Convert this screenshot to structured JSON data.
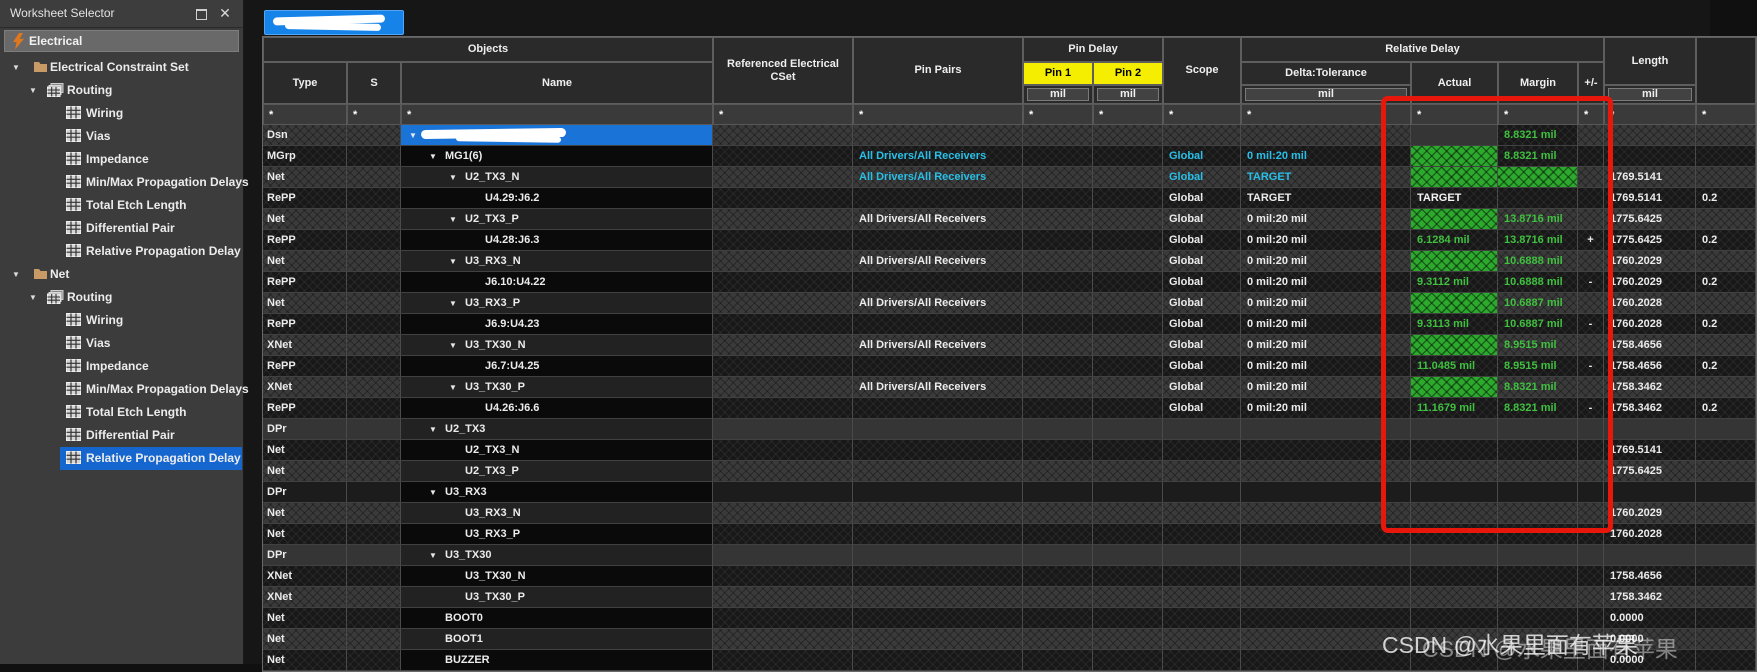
{
  "sidebar": {
    "title": "Worksheet Selector",
    "section": "Electrical",
    "tree": [
      {
        "label": "Electrical Constraint Set",
        "level": 0,
        "icon": "folder",
        "expanded": true
      },
      {
        "label": "Routing",
        "level": 1,
        "icon": "stack",
        "expanded": true
      },
      {
        "label": "Wiring",
        "level": 2,
        "icon": "sheet"
      },
      {
        "label": "Vias",
        "level": 2,
        "icon": "sheet"
      },
      {
        "label": "Impedance",
        "level": 2,
        "icon": "sheet"
      },
      {
        "label": "Min/Max Propagation Delays",
        "level": 2,
        "icon": "sheet"
      },
      {
        "label": "Total Etch Length",
        "level": 2,
        "icon": "sheet"
      },
      {
        "label": "Differential Pair",
        "level": 2,
        "icon": "sheet"
      },
      {
        "label": "Relative Propagation Delay",
        "level": 2,
        "icon": "sheet"
      },
      {
        "label": "Net",
        "level": 0,
        "icon": "folder",
        "expanded": true
      },
      {
        "label": "Routing",
        "level": 1,
        "icon": "stack",
        "expanded": true
      },
      {
        "label": "Wiring",
        "level": 2,
        "icon": "sheet"
      },
      {
        "label": "Vias",
        "level": 2,
        "icon": "sheet"
      },
      {
        "label": "Impedance",
        "level": 2,
        "icon": "sheet"
      },
      {
        "label": "Min/Max Propagation Delays",
        "level": 2,
        "icon": "sheet"
      },
      {
        "label": "Total Etch Length",
        "level": 2,
        "icon": "sheet"
      },
      {
        "label": "Differential Pair",
        "level": 2,
        "icon": "sheet"
      },
      {
        "label": "Relative Propagation Delay",
        "level": 2,
        "icon": "sheet",
        "selected": true
      }
    ]
  },
  "table": {
    "groups": {
      "objects": "Objects",
      "pin_delay": "Pin Delay",
      "relative_delay": "Relative Delay"
    },
    "headers": {
      "type": "Type",
      "s": "S",
      "name": "Name",
      "refcset": "Referenced Electrical CSet",
      "pin_pairs": "Pin Pairs",
      "pin1": "Pin 1",
      "pin2": "Pin 2",
      "scope": "Scope",
      "delta": "Delta:Tolerance",
      "actual": "Actual",
      "margin": "Margin",
      "pm": "+/-",
      "length": "Length",
      "unit": "mil",
      "filter": "*"
    },
    "rows": [
      {
        "type": "Dsn",
        "name": "",
        "indent": 0,
        "arrow": true,
        "selected": true,
        "redacted": true,
        "actual_smooth": true,
        "margin": "8.8321 mil",
        "margin_color": "green",
        "margin_dark": true
      },
      {
        "type": "MGrp",
        "name": "MG1(6)",
        "indent": 1,
        "arrow": true,
        "pin_pairs": "All Drivers/All Receivers",
        "pin_pairs_color": "cyan",
        "scope": "Global",
        "scope_color": "cyan",
        "delta": "0 mil:20 mil",
        "delta_color": "cyan",
        "actual_fill": true,
        "margin": "8.8321 mil",
        "margin_color": "green"
      },
      {
        "type": "Net",
        "name": "U2_TX3_N",
        "indent": 2,
        "arrow": true,
        "pin_pairs": "All Drivers/All Receivers",
        "pin_pairs_color": "cyan",
        "scope": "Global",
        "scope_color": "cyan",
        "delta": "TARGET",
        "delta_color": "cyan",
        "actual_fill": true,
        "margin_fill": true,
        "length": "1769.5141"
      },
      {
        "type": "RePP",
        "name": "U4.29:J6.2",
        "indent": 3,
        "scope": "Global",
        "delta": "TARGET",
        "actual": "TARGET",
        "actual_color": "white",
        "length": "1769.5141",
        "extra": "0.2"
      },
      {
        "type": "Net",
        "name": "U2_TX3_P",
        "indent": 2,
        "arrow": true,
        "pin_pairs": "All Drivers/All Receivers",
        "scope": "Global",
        "delta": "0 mil:20 mil",
        "actual_fill": true,
        "margin": "13.8716 mil",
        "margin_color": "green",
        "length": "1775.6425"
      },
      {
        "type": "RePP",
        "name": "U4.28:J6.3",
        "indent": 3,
        "scope": "Global",
        "delta": "0 mil:20 mil",
        "actual": "6.1284 mil",
        "actual_color": "green",
        "margin": "13.8716 mil",
        "margin_color": "green",
        "pm": "+",
        "length": "1775.6425",
        "extra": "0.2"
      },
      {
        "type": "Net",
        "name": "U3_RX3_N",
        "indent": 2,
        "arrow": true,
        "pin_pairs": "All Drivers/All Receivers",
        "scope": "Global",
        "delta": "0 mil:20 mil",
        "actual_fill": true,
        "margin": "10.6888 mil",
        "margin_color": "green",
        "length": "1760.2029"
      },
      {
        "type": "RePP",
        "name": "J6.10:U4.22",
        "indent": 3,
        "scope": "Global",
        "delta": "0 mil:20 mil",
        "actual": "9.3112 mil",
        "actual_color": "green",
        "margin": "10.6888 mil",
        "margin_color": "green",
        "pm": "-",
        "length": "1760.2029",
        "extra": "0.2"
      },
      {
        "type": "Net",
        "name": "U3_RX3_P",
        "indent": 2,
        "arrow": true,
        "pin_pairs": "All Drivers/All Receivers",
        "scope": "Global",
        "delta": "0 mil:20 mil",
        "actual_fill": true,
        "margin": "10.6887 mil",
        "margin_color": "green",
        "length": "1760.2028"
      },
      {
        "type": "RePP",
        "name": "J6.9:U4.23",
        "indent": 3,
        "scope": "Global",
        "delta": "0 mil:20 mil",
        "actual": "9.3113 mil",
        "actual_color": "green",
        "margin": "10.6887 mil",
        "margin_color": "green",
        "pm": "-",
        "length": "1760.2028",
        "extra": "0.2"
      },
      {
        "type": "XNet",
        "name": "U3_TX30_N",
        "indent": 2,
        "arrow": true,
        "pin_pairs": "All Drivers/All Receivers",
        "scope": "Global",
        "delta": "0 mil:20 mil",
        "actual_fill": true,
        "margin": "8.9515 mil",
        "margin_color": "green",
        "length": "1758.4656"
      },
      {
        "type": "RePP",
        "name": "J6.7:U4.25",
        "indent": 3,
        "scope": "Global",
        "delta": "0 mil:20 mil",
        "actual": "11.0485 mil",
        "actual_color": "green",
        "margin": "8.9515 mil",
        "margin_color": "green",
        "pm": "-",
        "length": "1758.4656",
        "extra": "0.2"
      },
      {
        "type": "XNet",
        "name": "U3_TX30_P",
        "indent": 2,
        "arrow": true,
        "pin_pairs": "All Drivers/All Receivers",
        "scope": "Global",
        "delta": "0 mil:20 mil",
        "actual_fill": true,
        "margin": "8.8321 mil",
        "margin_color": "green",
        "length": "1758.3462"
      },
      {
        "type": "RePP",
        "name": "U4.26:J6.6",
        "indent": 3,
        "scope": "Global",
        "delta": "0 mil:20 mil",
        "actual": "11.1679 mil",
        "actual_color": "green",
        "margin": "8.8321 mil",
        "margin_color": "green",
        "pm": "-",
        "length": "1758.3462",
        "extra": "0.2"
      },
      {
        "type": "DPr",
        "name": "U2_TX3",
        "indent": 1,
        "arrow": true,
        "smooth": true
      },
      {
        "type": "Net",
        "name": "U2_TX3_N",
        "indent": 2,
        "length": "1769.5141"
      },
      {
        "type": "Net",
        "name": "U2_TX3_P",
        "indent": 2,
        "length": "1775.6425"
      },
      {
        "type": "DPr",
        "name": "U3_RX3",
        "indent": 1,
        "arrow": true,
        "smooth": true
      },
      {
        "type": "Net",
        "name": "U3_RX3_N",
        "indent": 2,
        "length": "1760.2029"
      },
      {
        "type": "Net",
        "name": "U3_RX3_P",
        "indent": 2,
        "length": "1760.2028"
      },
      {
        "type": "DPr",
        "name": "U3_TX30",
        "indent": 1,
        "arrow": true,
        "smooth": true
      },
      {
        "type": "XNet",
        "name": "U3_TX30_N",
        "indent": 2,
        "length": "1758.4656"
      },
      {
        "type": "XNet",
        "name": "U3_TX30_P",
        "indent": 2,
        "length": "1758.3462"
      },
      {
        "type": "Net",
        "name": "BOOT0",
        "indent": 1,
        "length": "0.0000"
      },
      {
        "type": "Net",
        "name": "BOOT1",
        "indent": 1,
        "length": "0.0000"
      },
      {
        "type": "Net",
        "name": "BUZZER",
        "indent": 1,
        "length": "0.0000"
      }
    ]
  },
  "annotations": {
    "watermark": "CSDN @水果里面有苹果",
    "red_box_color": "#e8170c"
  },
  "colors": {
    "selection_blue": "#1a74d8",
    "tree_selection": "#1566cf",
    "cyan": "#28c0e8",
    "green_text": "#3fc03f",
    "green_fill": "#2daa2d",
    "pin_header_yellow": "#f5ee00",
    "red": "#e8170c"
  }
}
